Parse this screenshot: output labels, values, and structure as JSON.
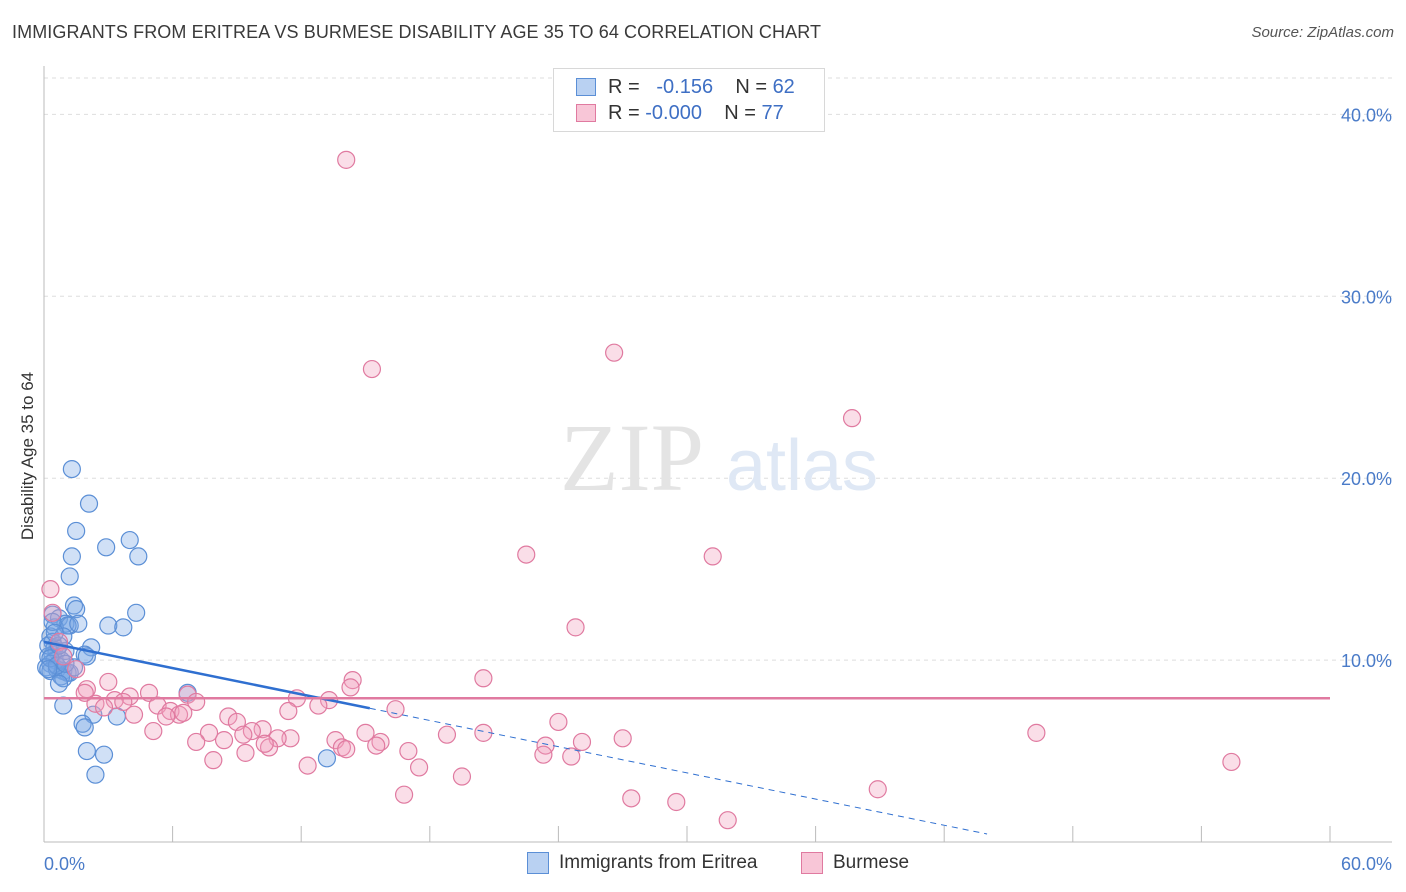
{
  "header": {
    "title": "IMMIGRANTS FROM ERITREA VS BURMESE DISABILITY AGE 35 TO 64 CORRELATION CHART",
    "source": "Source: ZipAtlas.com"
  },
  "watermark": {
    "zip": "ZIP",
    "atlas": "atlas"
  },
  "legend": {
    "rows": [
      {
        "r_label": "R =",
        "r_value": "-0.156",
        "n_label": "N =",
        "n_value": "62",
        "color": "#5b8fd6"
      },
      {
        "r_label": "R =",
        "r_value": "-0.000",
        "n_label": "N =",
        "n_value": "77",
        "color": "#e07aa0"
      }
    ]
  },
  "bottom_legend": [
    {
      "label": "Immigrants from Eritrea",
      "color": "#5b8fd6"
    },
    {
      "label": "Burmese",
      "color": "#e07aa0"
    }
  ],
  "chart_data": {
    "type": "scatter",
    "title": "IMMIGRANTS FROM ERITREA VS BURMESE DISABILITY AGE 35 TO 64 CORRELATION CHART",
    "xlabel": "",
    "ylabel": "Disability Age 35 to 64",
    "xlim": [
      0,
      60
    ],
    "ylim": [
      0,
      42
    ],
    "x_tick_labels": [
      "0.0%",
      "60.0%"
    ],
    "y_ticks": [
      10,
      20,
      30,
      40
    ],
    "y_tick_labels": [
      "10.0%",
      "20.0%",
      "30.0%",
      "40.0%"
    ],
    "grid": true,
    "legend_position": "top-center",
    "series": [
      {
        "name": "Immigrants from Eritrea",
        "color": "#5b8fd6",
        "fill": "rgba(120,165,230,0.35)",
        "points": [
          [
            1.3,
            20.5
          ],
          [
            2.1,
            18.6
          ],
          [
            1.5,
            17.1
          ],
          [
            4.0,
            16.6
          ],
          [
            2.9,
            16.2
          ],
          [
            1.3,
            15.7
          ],
          [
            4.4,
            15.7
          ],
          [
            1.2,
            14.6
          ],
          [
            1.4,
            13.0
          ],
          [
            1.5,
            12.8
          ],
          [
            0.4,
            12.5
          ],
          [
            4.3,
            12.6
          ],
          [
            0.7,
            12.3
          ],
          [
            1.0,
            12.0
          ],
          [
            1.2,
            11.9
          ],
          [
            0.5,
            11.8
          ],
          [
            1.1,
            11.9
          ],
          [
            3.0,
            11.9
          ],
          [
            3.7,
            11.8
          ],
          [
            0.3,
            11.3
          ],
          [
            0.9,
            11.3
          ],
          [
            0.4,
            11.0
          ],
          [
            0.5,
            10.7
          ],
          [
            2.2,
            10.7
          ],
          [
            0.6,
            10.5
          ],
          [
            0.4,
            10.3
          ],
          [
            1.9,
            10.3
          ],
          [
            2.0,
            10.2
          ],
          [
            0.2,
            10.2
          ],
          [
            0.5,
            10.0
          ],
          [
            0.8,
            10.0
          ],
          [
            0.3,
            9.8
          ],
          [
            0.1,
            9.6
          ],
          [
            0.6,
            9.5
          ],
          [
            0.3,
            9.4
          ],
          [
            0.9,
            9.4
          ],
          [
            1.1,
            9.3
          ],
          [
            1.2,
            9.3
          ],
          [
            0.8,
            9.1
          ],
          [
            0.9,
            9.0
          ],
          [
            0.7,
            8.7
          ],
          [
            6.7,
            8.2
          ],
          [
            0.9,
            7.5
          ],
          [
            2.3,
            7.0
          ],
          [
            3.4,
            6.9
          ],
          [
            1.8,
            6.5
          ],
          [
            1.9,
            6.3
          ],
          [
            2.0,
            5.0
          ],
          [
            2.8,
            4.8
          ],
          [
            13.2,
            4.6
          ],
          [
            2.4,
            3.7
          ],
          [
            0.4,
            12.1
          ],
          [
            1.6,
            12.0
          ],
          [
            0.2,
            10.8
          ],
          [
            0.3,
            10.1
          ],
          [
            1.0,
            10.5
          ],
          [
            0.6,
            9.7
          ],
          [
            0.2,
            9.5
          ],
          [
            1.4,
            9.6
          ],
          [
            0.7,
            10.8
          ],
          [
            0.5,
            11.5
          ],
          [
            1.0,
            9.8
          ]
        ]
      },
      {
        "name": "Burmese",
        "color": "#e07aa0",
        "fill": "rgba(240,160,190,0.35)",
        "points": [
          [
            14.1,
            37.5
          ],
          [
            26.6,
            26.9
          ],
          [
            15.3,
            26.0
          ],
          [
            37.7,
            23.3
          ],
          [
            22.5,
            15.8
          ],
          [
            31.2,
            15.7
          ],
          [
            0.3,
            13.9
          ],
          [
            24.8,
            11.8
          ],
          [
            0.4,
            12.6
          ],
          [
            0.7,
            11.0
          ],
          [
            0.9,
            10.2
          ],
          [
            1.5,
            9.5
          ],
          [
            20.5,
            9.0
          ],
          [
            14.4,
            8.9
          ],
          [
            3.0,
            8.8
          ],
          [
            14.3,
            8.5
          ],
          [
            2.0,
            8.4
          ],
          [
            1.9,
            8.2
          ],
          [
            4.9,
            8.2
          ],
          [
            6.7,
            8.1
          ],
          [
            4.0,
            8.0
          ],
          [
            11.8,
            7.9
          ],
          [
            13.3,
            7.8
          ],
          [
            3.3,
            7.8
          ],
          [
            3.7,
            7.7
          ],
          [
            2.4,
            7.6
          ],
          [
            7.1,
            7.7
          ],
          [
            5.3,
            7.5
          ],
          [
            12.8,
            7.5
          ],
          [
            2.8,
            7.4
          ],
          [
            16.4,
            7.3
          ],
          [
            5.9,
            7.2
          ],
          [
            11.4,
            7.2
          ],
          [
            4.2,
            7.0
          ],
          [
            6.3,
            7.0
          ],
          [
            6.5,
            7.1
          ],
          [
            8.6,
            6.9
          ],
          [
            5.7,
            6.9
          ],
          [
            24.0,
            6.6
          ],
          [
            9.0,
            6.6
          ],
          [
            10.2,
            6.2
          ],
          [
            20.5,
            6.0
          ],
          [
            9.7,
            6.1
          ],
          [
            7.7,
            6.0
          ],
          [
            5.1,
            6.1
          ],
          [
            9.3,
            5.9
          ],
          [
            11.5,
            5.7
          ],
          [
            10.9,
            5.7
          ],
          [
            27.0,
            5.7
          ],
          [
            13.6,
            5.6
          ],
          [
            8.4,
            5.6
          ],
          [
            7.1,
            5.5
          ],
          [
            15.7,
            5.5
          ],
          [
            25.1,
            5.5
          ],
          [
            13.9,
            5.2
          ],
          [
            10.5,
            5.2
          ],
          [
            15.5,
            5.3
          ],
          [
            23.4,
            5.3
          ],
          [
            14.1,
            5.1
          ],
          [
            17.0,
            5.0
          ],
          [
            9.4,
            4.9
          ],
          [
            10.3,
            5.4
          ],
          [
            23.3,
            4.8
          ],
          [
            24.6,
            4.7
          ],
          [
            7.9,
            4.5
          ],
          [
            12.3,
            4.2
          ],
          [
            17.5,
            4.1
          ],
          [
            19.5,
            3.6
          ],
          [
            55.4,
            4.4
          ],
          [
            46.3,
            6.0
          ],
          [
            38.9,
            2.9
          ],
          [
            16.8,
            2.6
          ],
          [
            27.4,
            2.4
          ],
          [
            29.5,
            2.2
          ],
          [
            31.9,
            1.2
          ],
          [
            15.0,
            6.0
          ],
          [
            18.8,
            5.9
          ]
        ]
      }
    ],
    "trendlines": [
      {
        "series": "Immigrants from Eritrea",
        "solid_x": [
          0,
          15.2
        ],
        "dashed_x": [
          15.2,
          44
        ],
        "y_at_x0": 11.0,
        "slope": -0.24
      },
      {
        "series": "Burmese",
        "x": [
          0,
          60
        ],
        "y": [
          7.9,
          7.9
        ]
      }
    ]
  }
}
